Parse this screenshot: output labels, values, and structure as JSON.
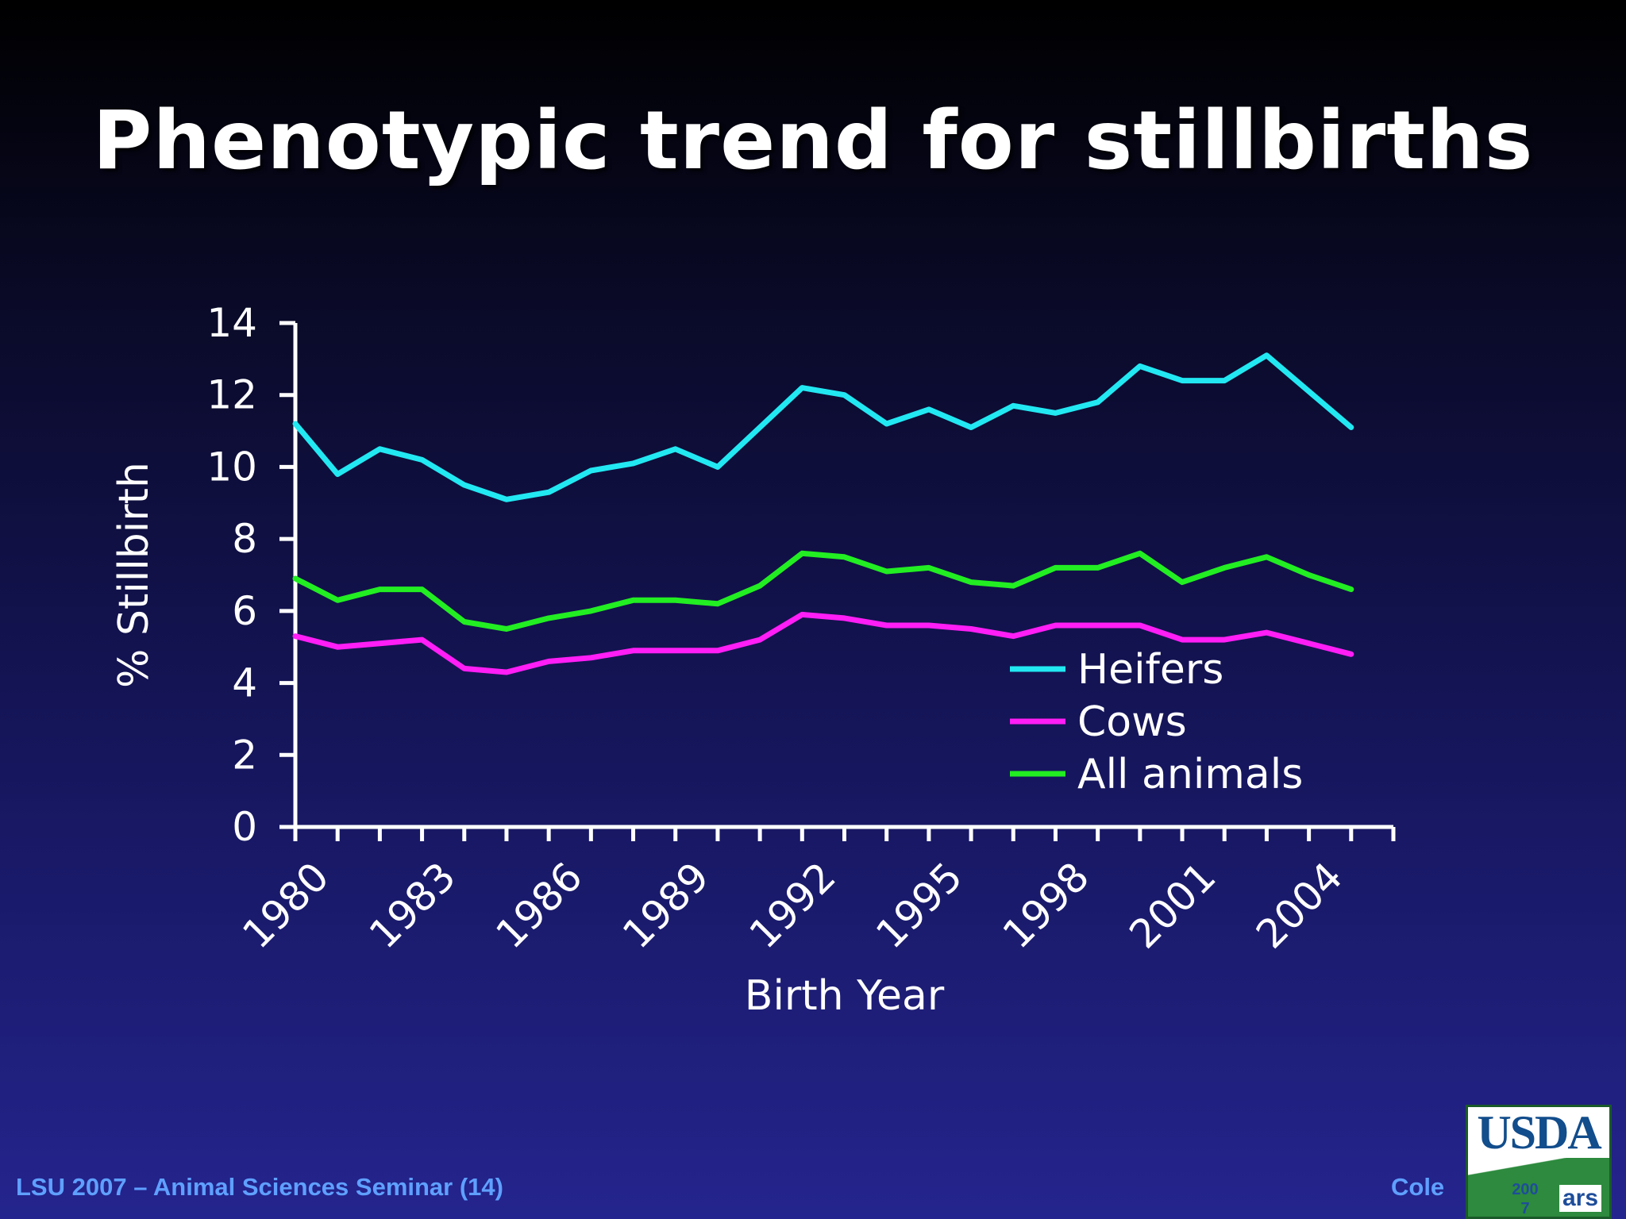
{
  "title": "Phenotypic trend for stillbirths",
  "footer": {
    "left": "LSU 2007 – Animal Sciences Seminar (14)",
    "author": "Cole",
    "year": "2007",
    "logo_text": "USDA",
    "logo_sub": "ars"
  },
  "colors": {
    "background_top": "#000000",
    "background_bottom": "#24248e",
    "heifers": "#22e8f2",
    "cows": "#ff1ef5",
    "all_animals": "#22ee22",
    "axis": "#ffffff",
    "footer_text": "#5fa0ff"
  },
  "chart_data": {
    "type": "line",
    "xlabel": "Birth Year",
    "ylabel": "% Stillbirth",
    "ylim": [
      0,
      14
    ],
    "yticks": [
      0,
      2,
      4,
      6,
      8,
      10,
      12,
      14
    ],
    "xlim": [
      1980,
      2006
    ],
    "xtick_labels": [
      "1980",
      "1983",
      "1986",
      "1989",
      "1992",
      "1995",
      "1998",
      "2001",
      "2004"
    ],
    "x": [
      1980,
      1981,
      1982,
      1983,
      1984,
      1985,
      1986,
      1987,
      1988,
      1989,
      1990,
      1991,
      1992,
      1993,
      1994,
      1995,
      1996,
      1997,
      1998,
      1999,
      2000,
      2001,
      2002,
      2003,
      2004,
      2005
    ],
    "legend_position": "lower-right",
    "grid": false,
    "series": [
      {
        "name": "Heifers",
        "color": "#22e8f2",
        "values": [
          11.2,
          9.8,
          10.5,
          10.2,
          9.5,
          9.1,
          9.3,
          9.9,
          10.1,
          10.5,
          10.0,
          11.1,
          12.2,
          12.0,
          11.2,
          11.6,
          11.1,
          11.7,
          11.5,
          11.8,
          12.8,
          12.4,
          12.4,
          13.1,
          12.1,
          11.1
        ]
      },
      {
        "name": "Cows",
        "color": "#ff1ef5",
        "values": [
          5.3,
          5.0,
          5.1,
          5.2,
          4.4,
          4.3,
          4.6,
          4.7,
          4.9,
          4.9,
          4.9,
          5.2,
          5.9,
          5.8,
          5.6,
          5.6,
          5.5,
          5.3,
          5.6,
          5.6,
          5.6,
          5.2,
          5.2,
          5.4,
          5.1,
          4.8
        ]
      },
      {
        "name": "All animals",
        "color": "#22ee22",
        "values": [
          6.9,
          6.3,
          6.6,
          6.6,
          5.7,
          5.5,
          5.8,
          6.0,
          6.3,
          6.3,
          6.2,
          6.7,
          7.6,
          7.5,
          7.1,
          7.2,
          6.8,
          6.7,
          7.2,
          7.2,
          7.6,
          6.8,
          7.2,
          7.5,
          7.0,
          6.6
        ]
      }
    ]
  }
}
